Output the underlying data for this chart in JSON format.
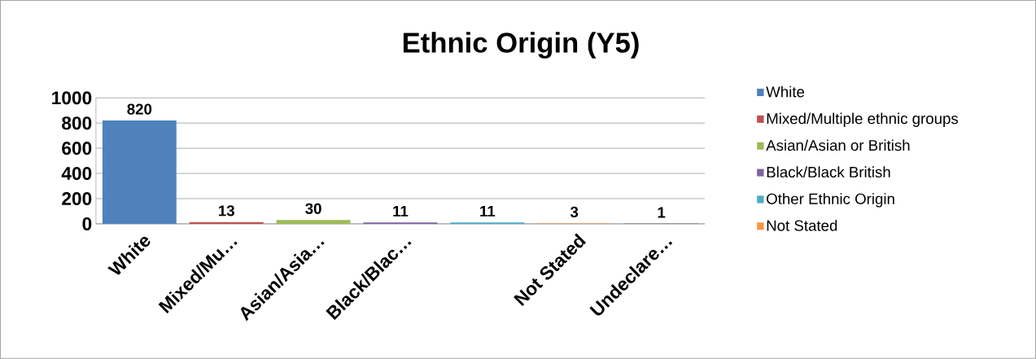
{
  "chart_data": {
    "type": "bar",
    "title": "Ethnic Origin (Y5)",
    "categories": [
      "White",
      "Mixed/Mu…",
      "Asian/Asia…",
      "Black/Blac…",
      null,
      "Not Stated",
      "Undeclare…"
    ],
    "series": [
      {
        "name": "White",
        "color": "#4f81bd",
        "values": [
          820,
          null,
          null,
          null,
          null,
          null,
          null
        ]
      },
      {
        "name": "Mixed/Multiple ethnic groups",
        "color": "#c0504d",
        "values": [
          null,
          13,
          null,
          null,
          null,
          null,
          null
        ]
      },
      {
        "name": "Asian/Asian or British",
        "color": "#9bbb59",
        "values": [
          null,
          null,
          30,
          null,
          null,
          null,
          null
        ]
      },
      {
        "name": "Black/Black British",
        "color": "#8064a2",
        "values": [
          null,
          null,
          null,
          11,
          null,
          null,
          null
        ]
      },
      {
        "name": "Other Ethnic Origin",
        "color": "#4bacc6",
        "values": [
          null,
          null,
          null,
          null,
          11,
          null,
          null
        ]
      },
      {
        "name": "Not Stated",
        "color": "#f79646",
        "values": [
          null,
          null,
          null,
          null,
          null,
          3,
          null
        ]
      },
      {
        "color": "#2c4d75",
        "values": [
          null,
          null,
          null,
          null,
          null,
          null,
          1
        ]
      }
    ],
    "ylim": [
      0,
      1000
    ],
    "yticks": [
      0,
      200,
      400,
      600,
      800,
      1000
    ],
    "grid": "y",
    "legend": "right",
    "data_labels": true
  }
}
